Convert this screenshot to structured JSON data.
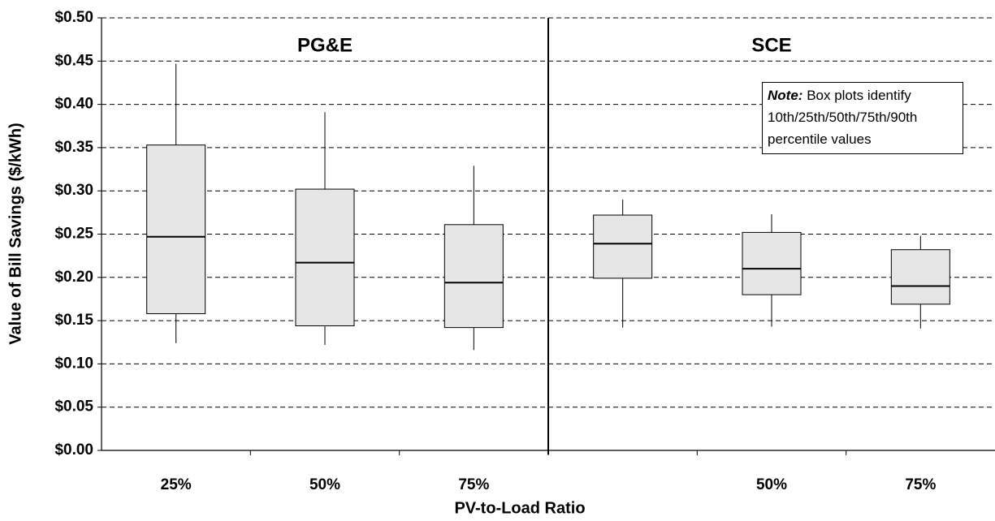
{
  "chart_data": {
    "type": "box",
    "xlabel": "PV-to-Load Ratio",
    "ylabel": "Value of Bill Savings ($/kWh)",
    "categories": [
      "25%",
      "50%",
      "75%",
      null,
      "50%",
      "75%"
    ],
    "group_labels": [
      "PG&E",
      "SCE"
    ],
    "boxes": [
      {
        "whislo": 0.124,
        "q1": 0.158,
        "med": 0.247,
        "q3": 0.353,
        "whishi": 0.447
      },
      {
        "whislo": 0.122,
        "q1": 0.144,
        "med": 0.217,
        "q3": 0.302,
        "whishi": 0.391
      },
      {
        "whislo": 0.116,
        "q1": 0.142,
        "med": 0.194,
        "q3": 0.261,
        "whishi": 0.329
      },
      {
        "whislo": 0.142,
        "q1": 0.199,
        "med": 0.239,
        "q3": 0.272,
        "whishi": 0.29
      },
      {
        "whislo": 0.143,
        "q1": 0.18,
        "med": 0.21,
        "q3": 0.252,
        "whishi": 0.273
      },
      {
        "whislo": 0.141,
        "q1": 0.169,
        "med": 0.19,
        "q3": 0.232,
        "whishi": 0.248
      }
    ],
    "color": "#e6e6e6",
    "ylim": [
      0,
      0.5
    ],
    "yticks": [
      {
        "value": 0,
        "label": "$0.00"
      },
      {
        "value": 0.05,
        "label": "$0.05"
      },
      {
        "value": 0.1,
        "label": "$0.10"
      },
      {
        "value": 0.15,
        "label": "$0.15"
      },
      {
        "value": 0.2,
        "label": "$0.20"
      },
      {
        "value": 0.25,
        "label": "$0.25"
      },
      {
        "value": 0.3,
        "label": "$0.30"
      },
      {
        "value": 0.35,
        "label": "$0.35"
      },
      {
        "value": 0.4,
        "label": "$0.40"
      },
      {
        "value": 0.45,
        "label": "$0.45"
      },
      {
        "value": 0.5,
        "label": "$0.50"
      }
    ],
    "grid": true,
    "note": {
      "label": "Note:",
      "text": "Box plots identify 10th/25th/50th/75th/90th percentile values"
    }
  }
}
